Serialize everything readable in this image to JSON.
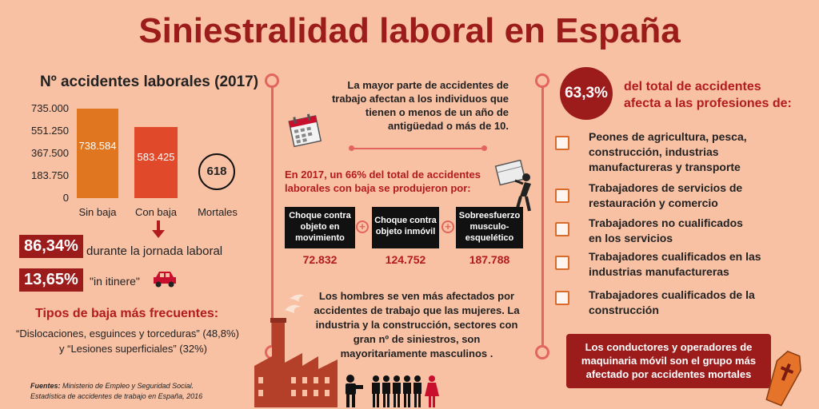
{
  "title": "Siniestralidad laboral en España",
  "left": {
    "chart_title": "Nº accidentes laborales (2017)",
    "arrow_icon": "arrow-down-icon",
    "pct1": {
      "value": "86,34%",
      "label": "durante la jornada laboral"
    },
    "pct2": {
      "value": "13,65%",
      "label": "\"in itinere\"",
      "icon": "car-icon"
    },
    "tipos_title": "Tipos de baja más frecuentes:",
    "tipos_line1": "“Dislocaciones, esguinces y torceduras” (48,8%)",
    "tipos_line2": "y “Lesiones superficiales” (32%)",
    "fuentes_label": "Fuentes:",
    "fuentes_text1": " Ministerio de  Empleo y Seguridad Social.",
    "fuentes_text2": "Estadística de accidentes de trabajo en España, 2016",
    "colors": {
      "sin_baja": "#e0761f",
      "con_baja": "#e04a2a",
      "mortales_circle": "#111111"
    }
  },
  "chart_data": {
    "type": "bar",
    "title": "Nº accidentes laborales (2017)",
    "categories": [
      "Sin baja",
      "Con baja",
      "Mortales"
    ],
    "values": [
      738584,
      583425,
      618
    ],
    "value_labels": [
      "738.584",
      "583.425",
      "618"
    ],
    "yticks": [
      "735.000",
      "551.250",
      "367.500",
      "183.750",
      "0"
    ],
    "ylim": [
      0,
      735000
    ],
    "grid": false
  },
  "middle": {
    "text1": "La mayor parte de accidentes de trabajo afectan a los individuos que tienen o menos de un año de antigüedad o más de 10.",
    "calendar_icon": "calendar-icon",
    "worker_icon": "worker-carrying-box-icon",
    "causes_title": "En 2017, un 66% del total de accidentes laborales con baja se produjeron por:",
    "causes": [
      {
        "label": "Choque contra objeto en movimiento",
        "value": "72.832"
      },
      {
        "label": "Choque contra objeto inmóvil",
        "value": "124.752"
      },
      {
        "label": "Sobreesfuerzo musculo-esquelético",
        "value": "187.788"
      }
    ],
    "plus_glyph": "+",
    "text3": "Los hombres se ven  más afectados por accidentes de trabajo que las mujeres. La industria y la construcción, sectores con gran nº de siniestros, son mayoritariamente masculinos .",
    "factory_icon": "factory-icon",
    "people_icon": "men-and-woman-icon"
  },
  "right": {
    "big_pct": "63,3%",
    "big_text": "del total de accidentes afecta a las profesiones de:",
    "professions": [
      "Peones de agricultura, pesca, construcción, industrias manufactureras y transporte",
      "Trabajadores de servicios de restauración y comercio",
      "Trabajadores no cualificados en los servicios",
      "Trabajadores cualificados en las industrias manufactureras",
      "Trabajadores cualificados de la construcción"
    ],
    "box_text": "Los conductores y operadores de maquinaria móvil son el grupo  más afectado por accidentes mortales",
    "coffin_icon": "coffin-icon",
    "colors": {
      "circle": "#9c1c1c",
      "box": "#9c1c1c",
      "checkbox": "#d86a2a"
    }
  }
}
